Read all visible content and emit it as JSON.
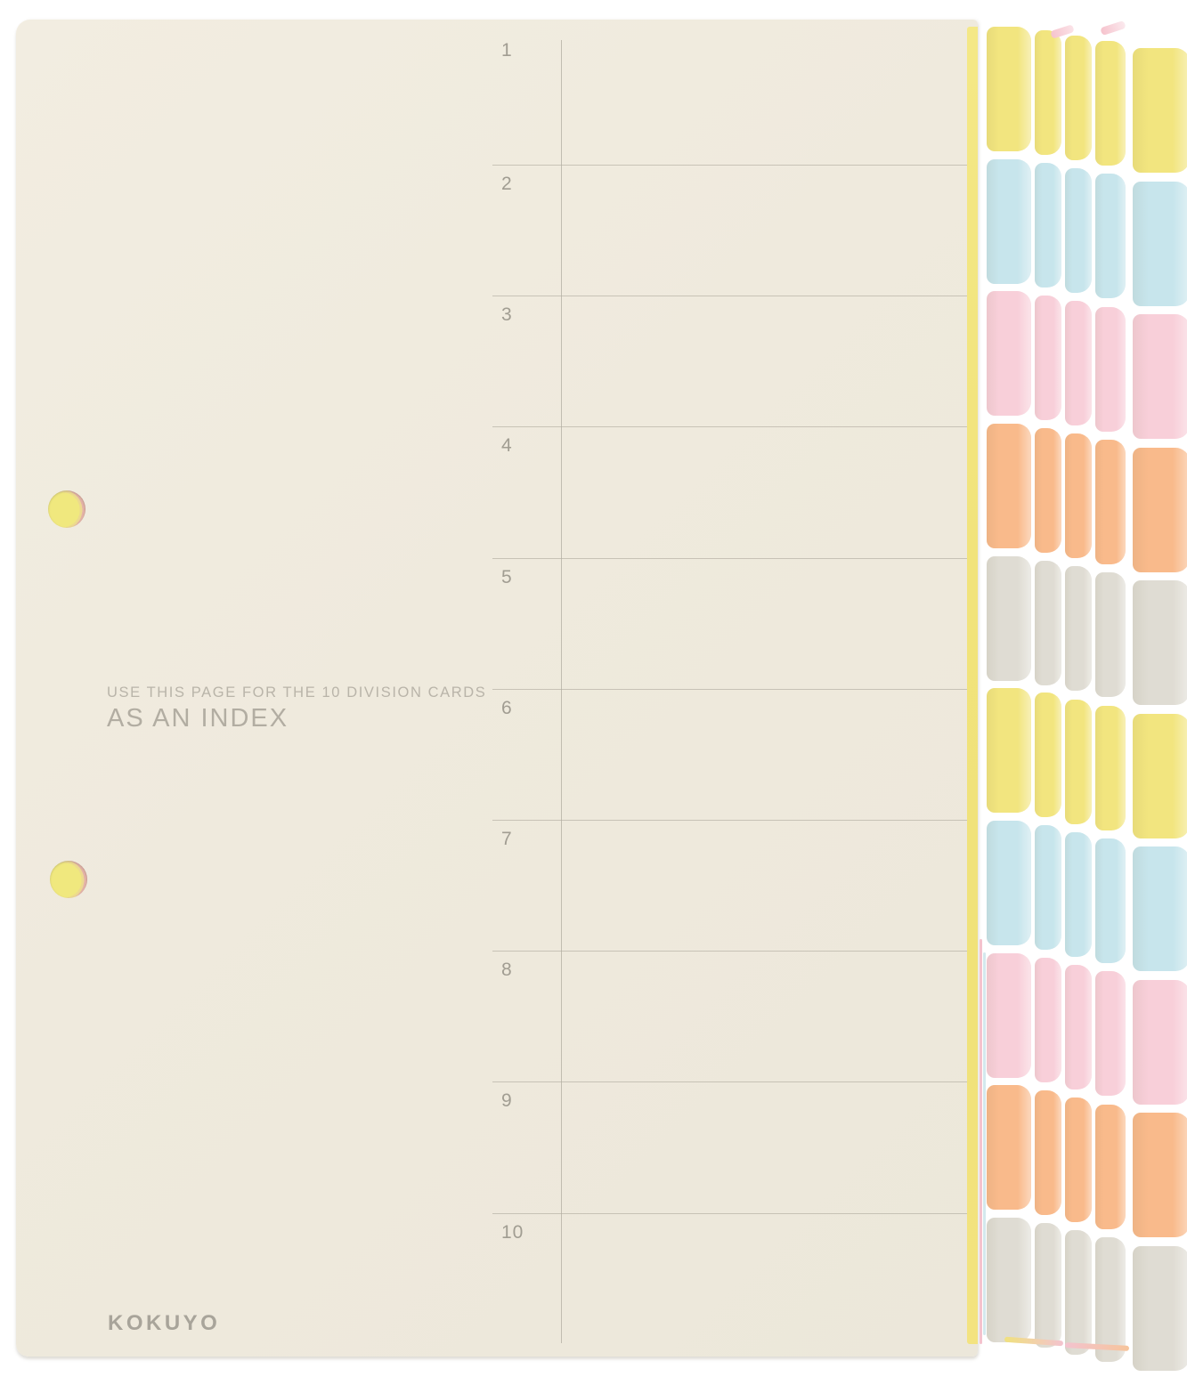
{
  "photo": {
    "background_color": "#ffffff",
    "brand": "KOKUYO",
    "note_line1": "USE THIS PAGE FOR THE 10 DIVISION CARDS",
    "note_line2": "AS AN INDEX"
  },
  "index_page": {
    "bg_color": "#efeadd",
    "rule_color": "#b2ada1",
    "number_color": "#a19d92",
    "note_color": "#b9b4a9",
    "brand_color": "#a8a49a",
    "row_numbers": [
      "1",
      "2",
      "3",
      "4",
      "5",
      "6",
      "7",
      "8",
      "9",
      "10"
    ],
    "punch_hole_count": "2"
  },
  "divider_tabs": {
    "palette": {
      "yellow": "#f2e57f",
      "blue": "#c7e5ec",
      "pink": "#f8cfd9",
      "orange": "#f9ba8b",
      "gray": "#dfdcd3"
    },
    "sequence": [
      "yellow",
      "blue",
      "pink",
      "orange",
      "gray",
      "yellow",
      "blue",
      "pink",
      "orange",
      "gray"
    ],
    "visible_set_columns": "5"
  }
}
